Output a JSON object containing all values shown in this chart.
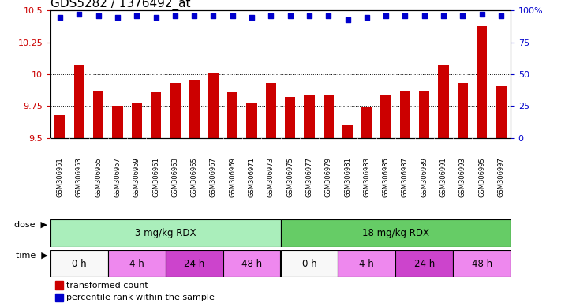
{
  "title": "GDS5282 / 1376492_at",
  "samples": [
    "GSM306951",
    "GSM306953",
    "GSM306955",
    "GSM306957",
    "GSM306959",
    "GSM306961",
    "GSM306963",
    "GSM306965",
    "GSM306967",
    "GSM306969",
    "GSM306971",
    "GSM306973",
    "GSM306975",
    "GSM306977",
    "GSM306979",
    "GSM306981",
    "GSM306983",
    "GSM306985",
    "GSM306987",
    "GSM306989",
    "GSM306991",
    "GSM306993",
    "GSM306995",
    "GSM306997"
  ],
  "bar_values": [
    9.68,
    10.07,
    9.87,
    9.75,
    9.78,
    9.86,
    9.93,
    9.95,
    10.01,
    9.86,
    9.78,
    9.93,
    9.82,
    9.83,
    9.84,
    9.6,
    9.74,
    9.83,
    9.87,
    9.87,
    10.07,
    9.93,
    10.38,
    9.91
  ],
  "percentile_values": [
    95,
    97,
    96,
    95,
    96,
    95,
    96,
    96,
    96,
    96,
    95,
    96,
    96,
    96,
    96,
    93,
    95,
    96,
    96,
    96,
    96,
    96,
    97,
    96
  ],
  "bar_color": "#cc0000",
  "percentile_color": "#0000cc",
  "ylim_left": [
    9.5,
    10.5
  ],
  "ylim_right": [
    0,
    100
  ],
  "yticks_left": [
    9.5,
    9.75,
    10.0,
    10.25,
    10.5
  ],
  "ytick_labels_left": [
    "9.5",
    "9.75",
    "10",
    "10.25",
    "10.5"
  ],
  "yticks_right": [
    0,
    25,
    50,
    75,
    100
  ],
  "ytick_labels_right": [
    "0",
    "25",
    "50",
    "75",
    "100%"
  ],
  "grid_lines": [
    9.75,
    10.0,
    10.25
  ],
  "dose_groups": [
    {
      "label": "3 mg/kg RDX",
      "start": 0,
      "end": 12,
      "color": "#aaeebb"
    },
    {
      "label": "18 mg/kg RDX",
      "start": 12,
      "end": 24,
      "color": "#66cc66"
    }
  ],
  "time_groups": [
    {
      "label": "0 h",
      "start": 0,
      "end": 3,
      "color": "#f8f8f8"
    },
    {
      "label": "4 h",
      "start": 3,
      "end": 6,
      "color": "#ee88ee"
    },
    {
      "label": "24 h",
      "start": 6,
      "end": 9,
      "color": "#cc44cc"
    },
    {
      "label": "48 h",
      "start": 9,
      "end": 12,
      "color": "#ee88ee"
    },
    {
      "label": "0 h",
      "start": 12,
      "end": 15,
      "color": "#f8f8f8"
    },
    {
      "label": "4 h",
      "start": 15,
      "end": 18,
      "color": "#ee88ee"
    },
    {
      "label": "24 h",
      "start": 18,
      "end": 21,
      "color": "#cc44cc"
    },
    {
      "label": "48 h",
      "start": 21,
      "end": 24,
      "color": "#ee88ee"
    }
  ],
  "legend_bar_label": "transformed count",
  "legend_pct_label": "percentile rank within the sample",
  "title_fontsize": 11,
  "tick_color_left": "#cc0000",
  "tick_color_right": "#0000cc",
  "bar_width": 0.55,
  "sample_label_fontsize": 6,
  "xticklabel_bg": "#d8d8d8"
}
